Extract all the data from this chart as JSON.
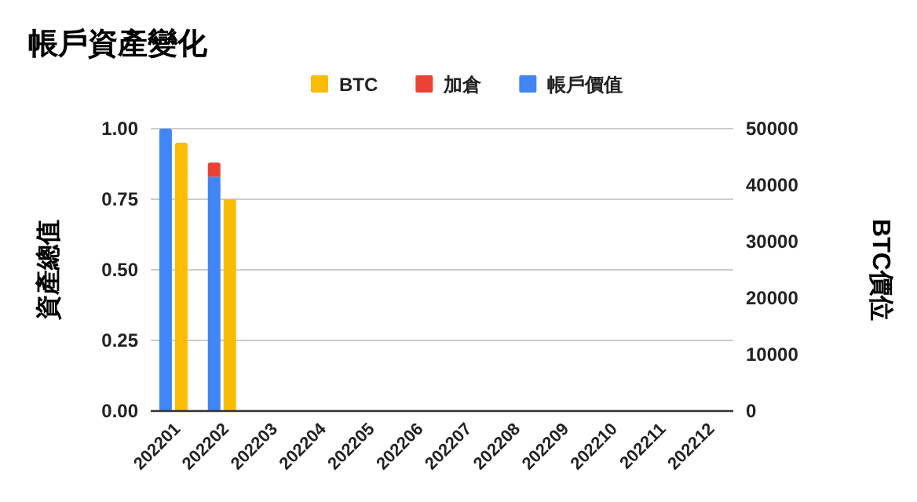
{
  "chart_data": {
    "type": "bar",
    "title": "帳戶資產變化",
    "ylabel": "資產總值",
    "y2label": "BTC價位",
    "categories": [
      "202201",
      "202202",
      "202203",
      "202204",
      "202205",
      "202206",
      "202207",
      "202208",
      "202209",
      "202210",
      "202211",
      "202212"
    ],
    "series": [
      {
        "name": "帳戶價值",
        "color": "#4285f4",
        "values": [
          1.0,
          0.83,
          null,
          null,
          null,
          null,
          null,
          null,
          null,
          null,
          null,
          null
        ]
      },
      {
        "name": "加倉",
        "color": "#ea4335",
        "values": [
          null,
          0.05,
          null,
          null,
          null,
          null,
          null,
          null,
          null,
          null,
          null,
          null
        ]
      },
      {
        "name": "BTC",
        "color": "#fbbc04",
        "axis": "y2",
        "values": [
          47500,
          37500,
          null,
          null,
          null,
          null,
          null,
          null,
          null,
          null,
          null,
          null
        ]
      }
    ],
    "stacked": true,
    "ylim": [
      0,
      1
    ],
    "yticks": [
      {
        "value": 0,
        "label": "0.00"
      },
      {
        "value": 0.25,
        "label": "0.25"
      },
      {
        "value": 0.5,
        "label": "0.50"
      },
      {
        "value": 0.75,
        "label": "0.75"
      },
      {
        "value": 1,
        "label": "1.00"
      }
    ],
    "y2lim": [
      0,
      50000
    ],
    "y2ticks": [
      0,
      10000,
      20000,
      30000,
      40000,
      50000
    ],
    "grid": "y",
    "legend": "top"
  }
}
